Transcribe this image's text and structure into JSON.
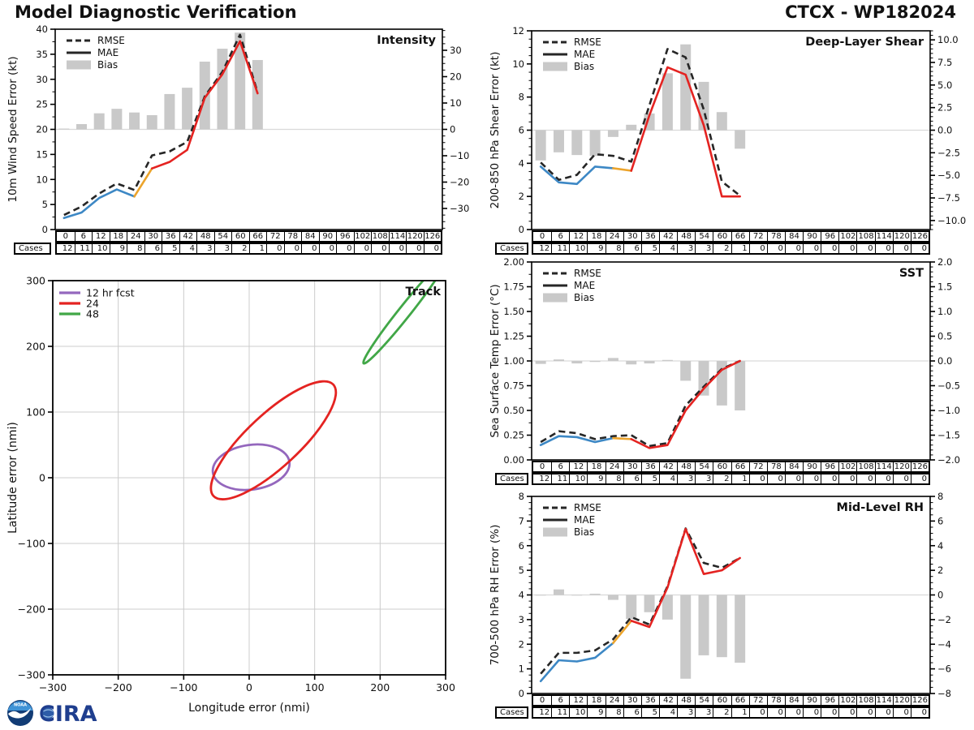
{
  "header": {
    "title": "Model Diagnostic Verification",
    "right_title": "CTCX - WP182024"
  },
  "colors": {
    "rmse": "#262626",
    "mae_0_24": "#3d88c5",
    "mae_24_30": "#eca42c",
    "mae_30_plus": "#e42321",
    "bias_bar": "#c9c9c9",
    "zero_line": "#d9d9d9",
    "grid": "#cccccc",
    "spine": "#000000",
    "ellipse_12": "#9467bd",
    "ellipse_24": "#e42321",
    "ellipse_48": "#41a747",
    "noaa_dark": "#123c75",
    "noaa_light": "#3f93d6",
    "cira_blue": "#1f3e8e"
  },
  "ts_legend": {
    "rmse": "RMSE",
    "mae": "MAE",
    "bias": "Bias"
  },
  "cases_label": "Cases",
  "hours": [
    "0",
    "6",
    "12",
    "18",
    "24",
    "30",
    "36",
    "42",
    "48",
    "54",
    "60",
    "66",
    "72",
    "78",
    "84",
    "90",
    "96",
    "102",
    "108",
    "114",
    "120",
    "126"
  ],
  "cases": [
    "12",
    "11",
    "10",
    "9",
    "8",
    "6",
    "5",
    "4",
    "3",
    "3",
    "2",
    "1",
    "0",
    "0",
    "0",
    "0",
    "0",
    "0",
    "0",
    "0",
    "0",
    "0"
  ],
  "logos": {
    "noaa": "NOAA",
    "cira": "CIRA"
  },
  "chart_data": [
    {
      "id": "intensity",
      "type": "line+bar",
      "title": "Intensity",
      "ylabel": "10m Wind Speed Error (kt)",
      "x_hours": [
        0,
        6,
        12,
        18,
        24,
        30,
        36,
        42,
        48,
        54,
        60,
        66
      ],
      "ylim": [
        0,
        40
      ],
      "yticks": {
        "values": [
          0,
          5,
          10,
          15,
          20,
          25,
          30,
          35,
          40
        ],
        "labels": [
          "0",
          "5",
          "10",
          "15",
          "20",
          "25",
          "30",
          "35",
          "40"
        ],
        "minor_step": 2.5
      },
      "bias_axis": {
        "lim": [
          -38,
          38
        ],
        "values": [
          30,
          20,
          10,
          0,
          -10,
          -20,
          -30
        ],
        "labels": [
          "30",
          "20",
          "10",
          "0",
          "−10",
          "−20",
          "−30"
        ],
        "minor_step": 2.5
      },
      "rmse": [
        2.9,
        4.6,
        7.2,
        9.2,
        7.9,
        14.8,
        15.6,
        17.5,
        26.6,
        31.5,
        38.9,
        27.4
      ],
      "mae": [
        2.3,
        3.4,
        6.3,
        8.0,
        6.6,
        12.2,
        13.5,
        15.9,
        26.3,
        31.0,
        37.6,
        27.2
      ],
      "bias": [
        0.3,
        2.0,
        6.1,
        7.8,
        6.4,
        5.4,
        13.4,
        15.8,
        25.7,
        30.6,
        36.7,
        26.3
      ],
      "mae_segments": [
        {
          "from": 0,
          "to": 4,
          "color": "mae_0_24"
        },
        {
          "from": 4,
          "to": 5,
          "color": "mae_24_30"
        },
        {
          "from": 5,
          "to": 11,
          "color": "mae_30_plus"
        }
      ]
    },
    {
      "id": "shear",
      "type": "line+bar",
      "title": "Deep-Layer Shear",
      "ylabel": "200-850 hPa Shear Error (kt)",
      "x_hours": [
        0,
        6,
        12,
        18,
        24,
        30,
        36,
        42,
        48,
        54,
        60,
        66
      ],
      "ylim": [
        0,
        12
      ],
      "yticks": {
        "values": [
          0,
          2,
          4,
          6,
          8,
          10,
          12
        ],
        "labels": [
          "0",
          "2",
          "4",
          "6",
          "8",
          "10",
          "12"
        ],
        "minor_step": 0.5
      },
      "bias_axis": {
        "lim": [
          -11,
          11
        ],
        "values": [
          10,
          7.5,
          5,
          2.5,
          0,
          -2.5,
          -5,
          -7.5,
          -10
        ],
        "labels": [
          "10.0",
          "7.5",
          "5.0",
          "2.5",
          "0.0",
          "−2.5",
          "−5.0",
          "−7.5",
          "−10.0"
        ],
        "minor_step": 0.5
      },
      "rmse": [
        4.05,
        3.0,
        3.3,
        4.55,
        4.45,
        4.1,
        7.5,
        10.9,
        10.4,
        7.25,
        2.9,
        2.05
      ],
      "mae": [
        3.8,
        2.85,
        2.75,
        3.8,
        3.7,
        3.55,
        6.9,
        9.8,
        9.35,
        6.3,
        2.0,
        2.0
      ],
      "bias": [
        -3.35,
        -2.45,
        -2.75,
        -2.85,
        -0.75,
        0.6,
        1.85,
        6.3,
        9.5,
        5.35,
        2.0,
        -2.05
      ],
      "mae_segments": [
        {
          "from": 0,
          "to": 4,
          "color": "mae_0_24"
        },
        {
          "from": 4,
          "to": 5,
          "color": "mae_24_30"
        },
        {
          "from": 5,
          "to": 11,
          "color": "mae_30_plus"
        }
      ]
    },
    {
      "id": "sst",
      "type": "line+bar",
      "title": "SST",
      "ylabel": "Sea Surface Temp Error (°C)",
      "x_hours": [
        0,
        6,
        12,
        18,
        24,
        30,
        36,
        42,
        48,
        54,
        60,
        66
      ],
      "ylim": [
        0,
        2
      ],
      "yticks": {
        "values": [
          0,
          0.25,
          0.5,
          0.75,
          1.0,
          1.25,
          1.5,
          1.75,
          2.0
        ],
        "labels": [
          "0.00",
          "0.25",
          "0.50",
          "0.75",
          "1.00",
          "1.25",
          "1.50",
          "1.75",
          "2.00"
        ],
        "minor_step": 0.125
      },
      "bias_axis": {
        "lim": [
          -2,
          2
        ],
        "values": [
          2,
          1.5,
          1,
          0.5,
          0,
          -0.5,
          -1,
          -1.5,
          -2
        ],
        "labels": [
          "2.0",
          "1.5",
          "1.0",
          "0.5",
          "0.0",
          "−0.5",
          "−1.0",
          "−1.5",
          "−2.0"
        ],
        "minor_step": 0.1
      },
      "rmse": [
        0.18,
        0.29,
        0.27,
        0.21,
        0.24,
        0.25,
        0.14,
        0.17,
        0.55,
        0.74,
        0.92,
        1.0
      ],
      "mae": [
        0.15,
        0.24,
        0.23,
        0.18,
        0.22,
        0.21,
        0.12,
        0.15,
        0.5,
        0.72,
        0.91,
        1.0
      ],
      "bias": [
        -0.06,
        0.03,
        -0.05,
        -0.02,
        0.06,
        -0.07,
        -0.05,
        0.02,
        -0.4,
        -0.7,
        -0.9,
        -1.0
      ],
      "mae_segments": [
        {
          "from": 0,
          "to": 4,
          "color": "mae_0_24"
        },
        {
          "from": 4,
          "to": 5,
          "color": "mae_24_30"
        },
        {
          "from": 5,
          "to": 11,
          "color": "mae_30_plus"
        }
      ]
    },
    {
      "id": "rh",
      "type": "line+bar",
      "title": "Mid-Level RH",
      "ylabel": "700-500 hPa RH Error (%)",
      "x_hours": [
        0,
        6,
        12,
        18,
        24,
        30,
        36,
        42,
        48,
        54,
        60,
        66
      ],
      "ylim": [
        0,
        8
      ],
      "yticks": {
        "values": [
          0,
          1,
          2,
          3,
          4,
          5,
          6,
          7,
          8
        ],
        "labels": [
          "0",
          "1",
          "2",
          "3",
          "4",
          "5",
          "6",
          "7",
          "8"
        ],
        "minor_step": 0.25
      },
      "bias_axis": {
        "lim": [
          -8,
          8
        ],
        "values": [
          8,
          6,
          4,
          2,
          0,
          -2,
          -4,
          -6,
          -8
        ],
        "labels": [
          "8",
          "6",
          "4",
          "2",
          "0",
          "−2",
          "−4",
          "−6",
          "−8"
        ],
        "minor_step": 0.5
      },
      "rmse": [
        0.8,
        1.65,
        1.65,
        1.75,
        2.2,
        3.1,
        2.8,
        4.35,
        6.7,
        5.3,
        5.1,
        5.5
      ],
      "mae": [
        0.5,
        1.35,
        1.3,
        1.45,
        2.05,
        2.95,
        2.7,
        4.3,
        6.68,
        4.85,
        5.0,
        5.5
      ],
      "bias": [
        -0.05,
        0.45,
        -0.05,
        0.1,
        -0.4,
        -1.95,
        -1.4,
        -2.0,
        -6.8,
        -4.9,
        -5.05,
        -5.5
      ],
      "mae_segments": [
        {
          "from": 0,
          "to": 4,
          "color": "mae_0_24"
        },
        {
          "from": 4,
          "to": 5,
          "color": "mae_24_30"
        },
        {
          "from": 5,
          "to": 11,
          "color": "mae_30_plus"
        }
      ]
    },
    {
      "id": "track",
      "type": "error-ellipses",
      "title": "Track",
      "xlabel": "Longitude error (nmi)",
      "ylabel": "Latitude error (nmi)",
      "xlim": [
        -300,
        300
      ],
      "ylim": [
        -300,
        300
      ],
      "xticks": {
        "values": [
          -300,
          -200,
          -100,
          0,
          100,
          200,
          300
        ],
        "labels": [
          "−300",
          "−200",
          "−100",
          "0",
          "100",
          "200",
          "300"
        ]
      },
      "yticks": {
        "values": [
          -300,
          -200,
          -100,
          0,
          100,
          200,
          300
        ],
        "labels": [
          "−300",
          "−200",
          "−100",
          "0",
          "100",
          "200",
          "300"
        ]
      },
      "legend": [
        {
          "label": "12 hr fcst",
          "color": "ellipse_12"
        },
        {
          "label": "24",
          "color": "ellipse_24"
        },
        {
          "label": "48",
          "color": "ellipse_48"
        }
      ],
      "ellipses": [
        {
          "name": "12 hr fcst",
          "cx": 3,
          "cy": 16,
          "semi_major": 59,
          "semi_minor": 34,
          "angle_deg": 8,
          "color": "ellipse_12"
        },
        {
          "name": "24 hr fcst",
          "cx": 37,
          "cy": 57,
          "semi_major": 125,
          "semi_minor": 40,
          "angle_deg": 43,
          "color": "ellipse_24"
        },
        {
          "name": "48 hr fcst",
          "cx": 237,
          "cy": 252,
          "semi_major": 100,
          "semi_minor": 9,
          "angle_deg": 51.5,
          "color": "ellipse_48"
        }
      ]
    }
  ]
}
